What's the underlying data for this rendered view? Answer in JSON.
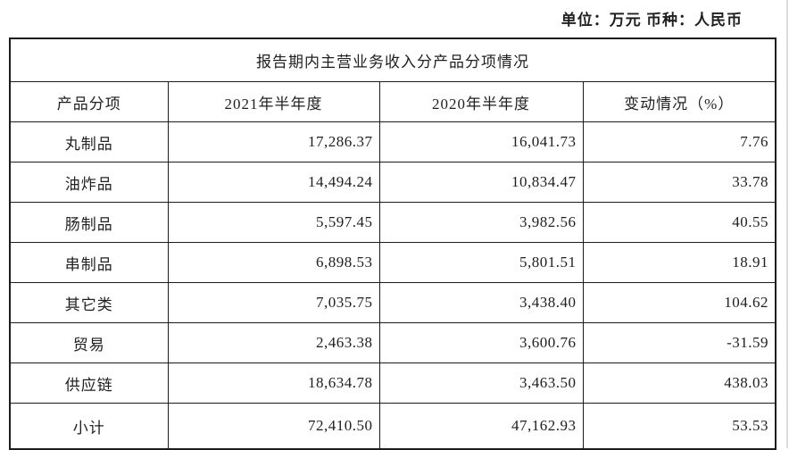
{
  "meta": {
    "unit_label": "单位：万元  币种：人民币"
  },
  "table": {
    "title": "报告期内主营业务收入分产品分项情况",
    "columns": [
      "产品分项",
      "2021年半年度",
      "2020年半年度",
      "变动情况（%）"
    ],
    "rows": [
      {
        "product": "丸制品",
        "v2021": "17,286.37",
        "v2020": "16,041.73",
        "change": "7.76"
      },
      {
        "product": "油炸品",
        "v2021": "14,494.24",
        "v2020": "10,834.47",
        "change": "33.78"
      },
      {
        "product": "肠制品",
        "v2021": "5,597.45",
        "v2020": "3,982.56",
        "change": "40.55"
      },
      {
        "product": "串制品",
        "v2021": "6,898.53",
        "v2020": "5,801.51",
        "change": "18.91"
      },
      {
        "product": "其它类",
        "v2021": "7,035.75",
        "v2020": "3,438.40",
        "change": "104.62"
      },
      {
        "product": "贸易",
        "v2021": "2,463.38",
        "v2020": "3,600.76",
        "change": "-31.59"
      },
      {
        "product": "供应链",
        "v2021": "18,634.78",
        "v2020": "3,463.50",
        "change": "438.03"
      },
      {
        "product": "小计",
        "v2021": "72,410.50",
        "v2020": "47,162.93",
        "change": "53.53"
      }
    ]
  },
  "colors": {
    "border": "#1c1c1c",
    "text": "#1f1f1f",
    "background": "#ffffff",
    "page_edge": "#dcdcdc"
  }
}
